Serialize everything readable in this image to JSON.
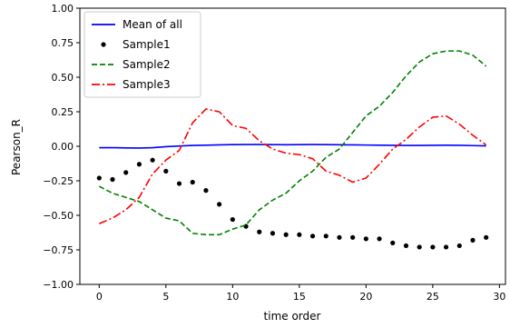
{
  "chart_data": {
    "type": "line",
    "title": "",
    "xlabel": "time order",
    "ylabel": "Pearson_R",
    "xlim": [
      -1.45,
      30.45
    ],
    "ylim": [
      -1.0,
      1.0
    ],
    "grid": false,
    "legend_position": "top-left",
    "x_ticks": [
      0,
      5,
      10,
      15,
      20,
      25,
      30
    ],
    "x_tick_labels": [
      "0",
      "5",
      "10",
      "15",
      "20",
      "25",
      "30"
    ],
    "y_ticks": [
      -1.0,
      -0.75,
      -0.5,
      -0.25,
      0.0,
      0.25,
      0.5,
      0.75,
      1.0
    ],
    "y_tick_labels": [
      "−1.00",
      "−0.75",
      "−0.50",
      "−0.25",
      "0.00",
      "0.25",
      "0.50",
      "0.75",
      "1.00"
    ],
    "x": [
      0,
      1,
      2,
      3,
      4,
      5,
      6,
      7,
      8,
      9,
      10,
      11,
      12,
      13,
      14,
      15,
      16,
      17,
      18,
      19,
      20,
      21,
      22,
      23,
      24,
      25,
      26,
      27,
      28,
      29
    ],
    "series": [
      {
        "name": "Mean of all",
        "color": "#0000ff",
        "style": "solid",
        "marker": "none",
        "values": [
          -0.01,
          -0.01,
          -0.012,
          -0.013,
          -0.01,
          -0.003,
          0.002,
          0.006,
          0.008,
          0.01,
          0.012,
          0.013,
          0.013,
          0.012,
          0.011,
          0.012,
          0.013,
          0.012,
          0.011,
          0.01,
          0.009,
          0.008,
          0.007,
          0.006,
          0.006,
          0.007,
          0.008,
          0.007,
          0.005,
          0.003
        ]
      },
      {
        "name": "Sample1",
        "color": "#000000",
        "style": "none",
        "marker": "dot",
        "values": [
          -0.23,
          -0.24,
          -0.19,
          -0.13,
          -0.1,
          -0.18,
          -0.27,
          -0.26,
          -0.32,
          -0.42,
          -0.53,
          -0.58,
          -0.62,
          -0.63,
          -0.64,
          -0.64,
          -0.65,
          -0.65,
          -0.66,
          -0.66,
          -0.67,
          -0.67,
          -0.7,
          -0.72,
          -0.73,
          -0.73,
          -0.73,
          -0.72,
          -0.68,
          -0.66
        ]
      },
      {
        "name": "Sample2",
        "color": "#008000",
        "style": "dashed",
        "marker": "none",
        "values": [
          -0.29,
          -0.34,
          -0.37,
          -0.4,
          -0.46,
          -0.52,
          -0.54,
          -0.63,
          -0.64,
          -0.64,
          -0.6,
          -0.57,
          -0.46,
          -0.39,
          -0.34,
          -0.25,
          -0.18,
          -0.08,
          -0.02,
          0.1,
          0.22,
          0.29,
          0.39,
          0.51,
          0.61,
          0.67,
          0.69,
          0.69,
          0.66,
          0.58
        ]
      },
      {
        "name": "Sample3",
        "color": "#ff0000",
        "style": "dashdot",
        "marker": "none",
        "values": [
          -0.56,
          -0.52,
          -0.46,
          -0.37,
          -0.2,
          -0.1,
          -0.03,
          0.17,
          0.27,
          0.25,
          0.15,
          0.13,
          0.04,
          -0.02,
          -0.05,
          -0.06,
          -0.09,
          -0.18,
          -0.21,
          -0.26,
          -0.23,
          -0.13,
          -0.02,
          0.05,
          0.14,
          0.21,
          0.22,
          0.16,
          0.08,
          0.01
        ]
      }
    ]
  }
}
